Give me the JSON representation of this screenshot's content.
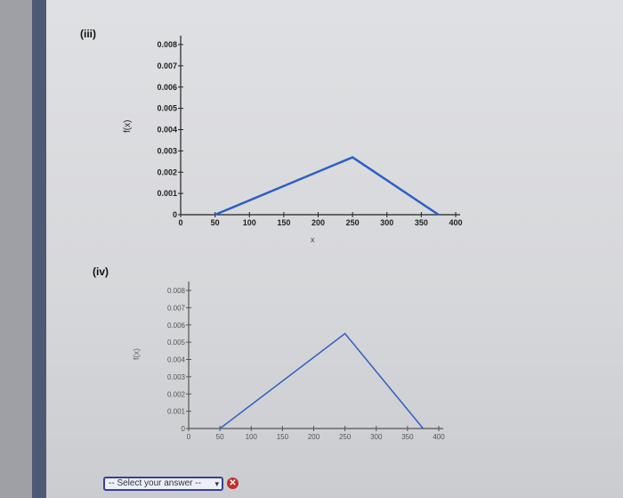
{
  "parts": {
    "iii_label": "(iii)",
    "iv_label": "(iv)"
  },
  "charts": {
    "ylabel": "f(x)",
    "xlabel": "x"
  },
  "chart_data": [
    {
      "type": "line",
      "title": "",
      "xlabel": "x",
      "ylabel": "f(x)",
      "xlim": [
        0,
        400
      ],
      "ylim": [
        0,
        0.008
      ],
      "x_ticks": [
        "0",
        "50",
        "100",
        "150",
        "200",
        "250",
        "300",
        "350",
        "400"
      ],
      "y_ticks": [
        "0",
        "0.001",
        "0.002",
        "0.003",
        "0.004",
        "0.005",
        "0.006",
        "0.007",
        "0.008"
      ],
      "series": [
        {
          "x": [
            50,
            250,
            375
          ],
          "y": [
            0,
            0.0027,
            0
          ]
        }
      ],
      "color": "#2e5fc4"
    },
    {
      "type": "line",
      "title": "",
      "xlabel": "",
      "ylabel": "f(x)",
      "xlim": [
        0,
        400
      ],
      "ylim": [
        0,
        0.008
      ],
      "x_ticks": [
        "0",
        "50",
        "100",
        "150",
        "200",
        "250",
        "300",
        "350",
        "400"
      ],
      "y_ticks": [
        "0",
        "0.001",
        "0.002",
        "0.003",
        "0.004",
        "0.005",
        "0.006",
        "0.007",
        "0.008"
      ],
      "series": [
        {
          "x": [
            50,
            250,
            375
          ],
          "y": [
            0,
            0.0055,
            0
          ]
        }
      ],
      "color": "#2e5fc4"
    }
  ],
  "answer": {
    "select_value": "-- Select your answer --",
    "arrow": "▾",
    "clear_icon": "✕"
  }
}
